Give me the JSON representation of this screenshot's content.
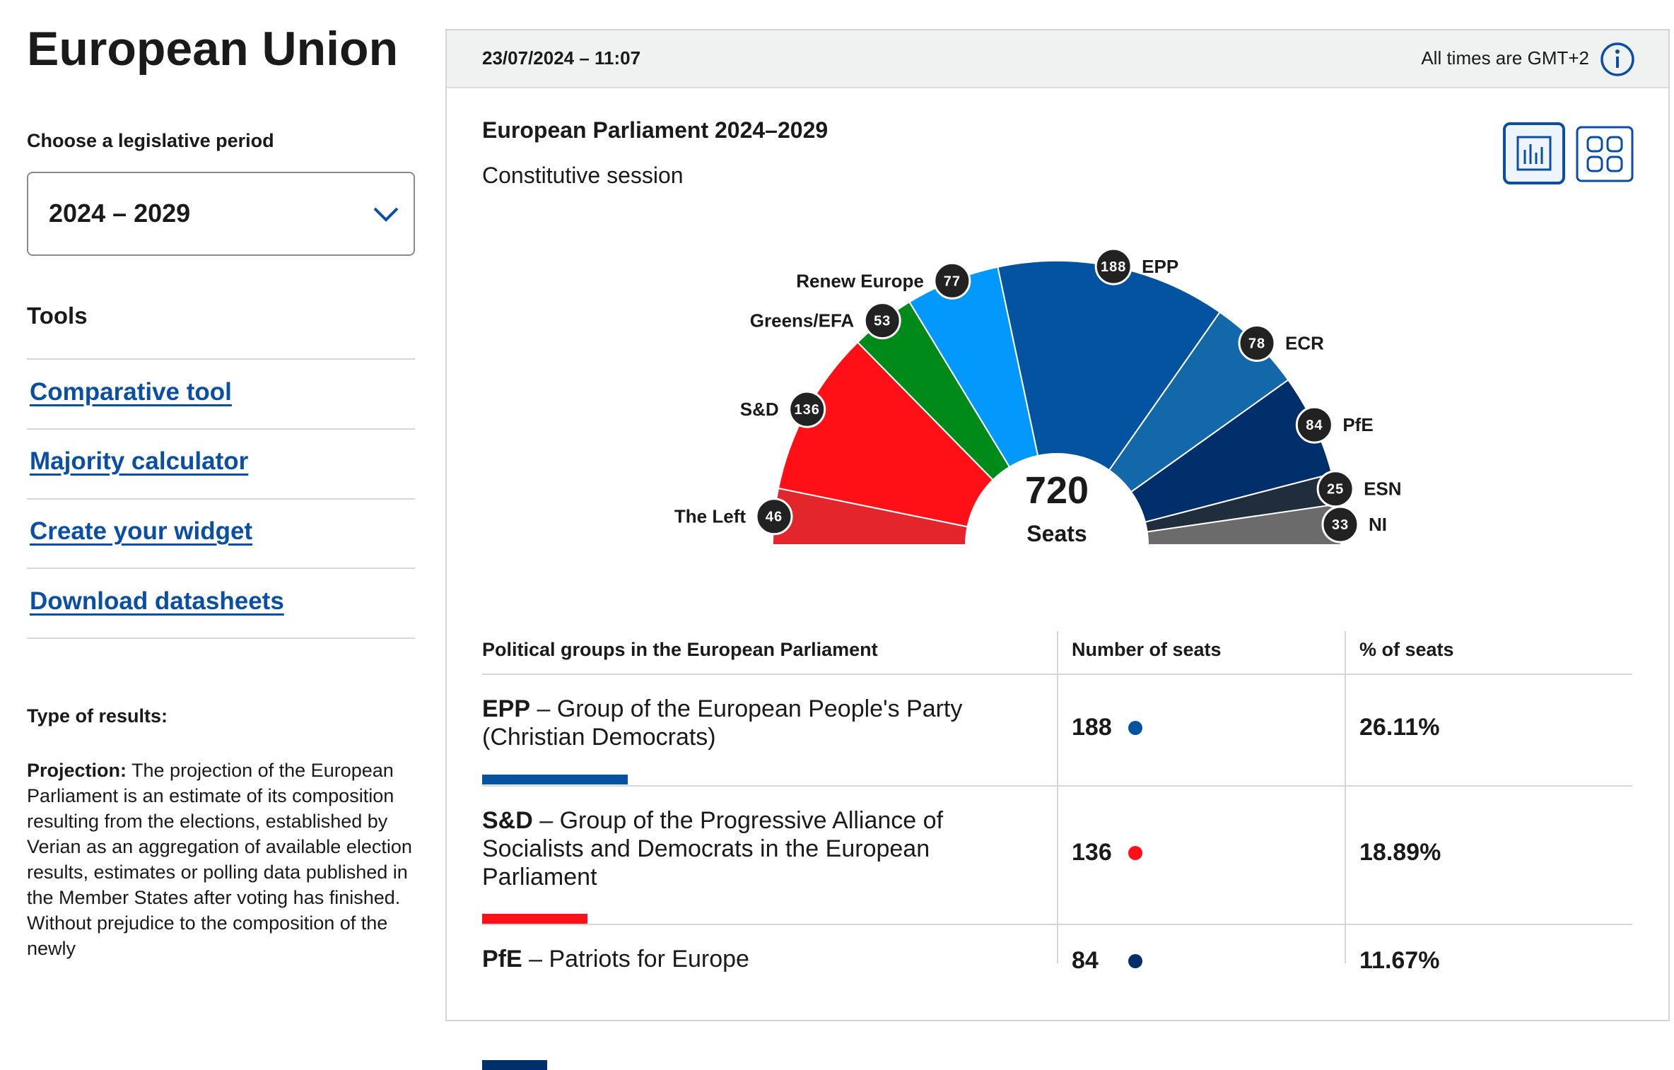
{
  "sidebar": {
    "title": "European Union",
    "period_label": "Choose a legislative period",
    "period": "2024 – 2029",
    "tools_title": "Tools",
    "tools": [
      "Comparative tool",
      "Majority calculator",
      "Create your widget",
      "Download datasheets"
    ],
    "results_title": "Type of results:",
    "results_term": "Projection:",
    "results_text": "The projection of the European Parliament is an estimate of its composition resulting from the elections, established by Verian as an aggregation of available election results, estimates or polling data published in the Member States after voting has finished. Without prejudice to the composition of the newly"
  },
  "header": {
    "date": "23/07/2024 – 11:07",
    "timezone": "All times are GMT+2"
  },
  "chart_data": {
    "type": "hemicycle",
    "title": "European Parliament 2024–2029",
    "subtitle": "Constitutive session",
    "categories": [
      "The Left",
      "S&D",
      "Greens/EFA",
      "Renew Europe",
      "EPP",
      "ECR",
      "PfE",
      "ESN",
      "NI"
    ],
    "values": [
      46,
      136,
      53,
      77,
      188,
      78,
      84,
      25,
      33
    ],
    "colors": [
      "#e3262b",
      "#ff1016",
      "#008a1a",
      "#0398fc",
      "#0353a0",
      "#1268a8",
      "#002f6c",
      "#1f2d3d",
      "#6b6b6b"
    ],
    "total": 720,
    "total_label": "Seats"
  },
  "table": {
    "columns": [
      "Political groups in the European Parliament",
      "Number of seats",
      "% of seats"
    ],
    "rows": [
      {
        "group": "EPP",
        "name": "– Group of the European People's Party (Christian Democrats)",
        "seats": 188,
        "percent": "26.11%",
        "color": "#0353a0"
      },
      {
        "group": "S&D",
        "name": "– Group of the Progressive Alliance of Socialists and Democrats in the European Parliament",
        "seats": 136,
        "percent": "18.89%",
        "color": "#ff1016"
      },
      {
        "group": "PfE",
        "name": "– Patriots for Europe",
        "seats": 84,
        "percent": "11.67%",
        "color": "#002f6c"
      }
    ]
  }
}
